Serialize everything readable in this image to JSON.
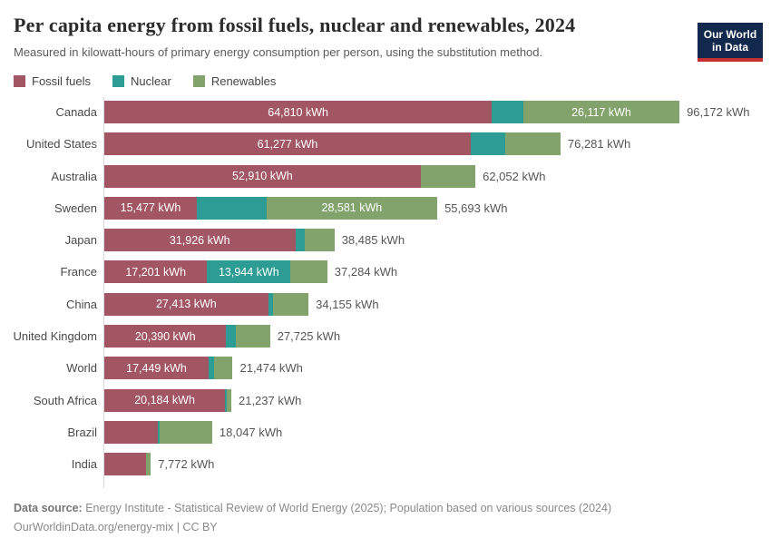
{
  "header": {
    "title": "Per capita energy from fossil fuels, nuclear and renewables, 2024",
    "subtitle": "Measured in kilowatt-hours of primary energy consumption per person, using the substitution method.",
    "logo": {
      "line1": "Our World",
      "line2": "in Data",
      "bg_color": "#12294d",
      "accent_color": "#c4302f"
    }
  },
  "chart_data": {
    "type": "bar",
    "orientation": "horizontal",
    "stacked": true,
    "unit": "kWh",
    "xlim": [
      0,
      96172
    ],
    "legend_position": "top",
    "grid": false,
    "series": [
      {
        "key": "fossil",
        "name": "Fossil fuels",
        "color": "#a25562"
      },
      {
        "key": "nuclear",
        "name": "Nuclear",
        "color": "#2d9c95"
      },
      {
        "key": "renewables",
        "name": "Renewables",
        "color": "#82a36c"
      }
    ],
    "rows": [
      {
        "country": "Canada",
        "values": {
          "fossil": 64810,
          "nuclear": 5245,
          "renewables": 26117
        },
        "labels": {
          "fossil": "64,810 kWh",
          "nuclear": "",
          "renewables": "26,117 kWh"
        },
        "total": 96172,
        "total_label": "96,172 kWh"
      },
      {
        "country": "United States",
        "values": {
          "fossil": 61277,
          "nuclear": 5800,
          "renewables": 9204
        },
        "labels": {
          "fossil": "61,277 kWh",
          "nuclear": "",
          "renewables": ""
        },
        "total": 76281,
        "total_label": "76,281 kWh"
      },
      {
        "country": "Australia",
        "values": {
          "fossil": 52910,
          "nuclear": 0,
          "renewables": 9142
        },
        "labels": {
          "fossil": "52,910 kWh",
          "nuclear": "",
          "renewables": ""
        },
        "total": 62052,
        "total_label": "62,052 kWh"
      },
      {
        "country": "Sweden",
        "values": {
          "fossil": 15477,
          "nuclear": 11635,
          "renewables": 28581
        },
        "labels": {
          "fossil": "15,477 kWh",
          "nuclear": "",
          "renewables": "28,581 kWh"
        },
        "total": 55693,
        "total_label": "55,693 kWh"
      },
      {
        "country": "Japan",
        "values": {
          "fossil": 31926,
          "nuclear": 1660,
          "renewables": 4899
        },
        "labels": {
          "fossil": "31,926 kWh",
          "nuclear": "",
          "renewables": ""
        },
        "total": 38485,
        "total_label": "38,485 kWh"
      },
      {
        "country": "France",
        "values": {
          "fossil": 17201,
          "nuclear": 13944,
          "renewables": 6139
        },
        "labels": {
          "fossil": "17,201 kWh",
          "nuclear": "13,944 kWh",
          "renewables": ""
        },
        "total": 37284,
        "total_label": "37,284 kWh"
      },
      {
        "country": "China",
        "values": {
          "fossil": 27413,
          "nuclear": 742,
          "renewables": 6000
        },
        "labels": {
          "fossil": "27,413 kWh",
          "nuclear": "",
          "renewables": ""
        },
        "total": 34155,
        "total_label": "34,155 kWh"
      },
      {
        "country": "United Kingdom",
        "values": {
          "fossil": 20390,
          "nuclear": 1600,
          "renewables": 5735
        },
        "labels": {
          "fossil": "20,390 kWh",
          "nuclear": "",
          "renewables": ""
        },
        "total": 27725,
        "total_label": "27,725 kWh"
      },
      {
        "country": "World",
        "values": {
          "fossil": 17449,
          "nuclear": 850,
          "renewables": 3175
        },
        "labels": {
          "fossil": "17,449 kWh",
          "nuclear": "",
          "renewables": ""
        },
        "total": 21474,
        "total_label": "21,474 kWh"
      },
      {
        "country": "South Africa",
        "values": {
          "fossil": 20184,
          "nuclear": 320,
          "renewables": 733
        },
        "labels": {
          "fossil": "20,184 kWh",
          "nuclear": "",
          "renewables": ""
        },
        "total": 21237,
        "total_label": "21,237 kWh"
      },
      {
        "country": "Brazil",
        "values": {
          "fossil": 9000,
          "nuclear": 250,
          "renewables": 8797
        },
        "labels": {
          "fossil": "",
          "nuclear": "",
          "renewables": ""
        },
        "total": 18047,
        "total_label": "18,047 kWh"
      },
      {
        "country": "India",
        "values": {
          "fossil": 6950,
          "nuclear": 87,
          "renewables": 735
        },
        "labels": {
          "fossil": "",
          "nuclear": "",
          "renewables": ""
        },
        "total": 7772,
        "total_label": "7,772 kWh"
      }
    ]
  },
  "footer": {
    "source_label": "Data source: ",
    "source_text": "Energy Institute - Statistical Review of World Energy (2025); Population based on various sources (2024)",
    "credit": "OurWorldinData.org/energy-mix | CC BY"
  }
}
